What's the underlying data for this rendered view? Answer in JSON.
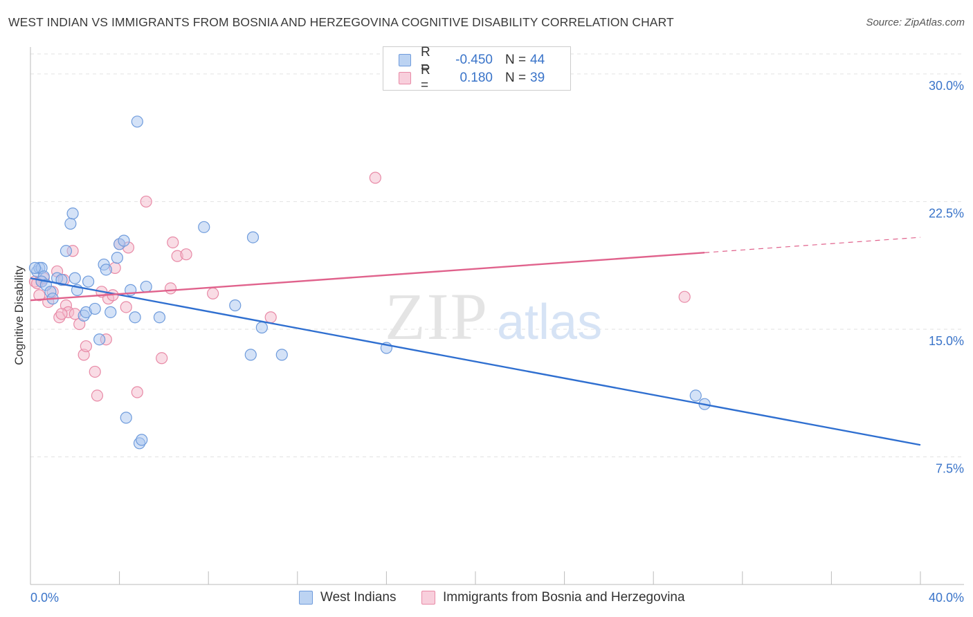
{
  "header": {
    "title": "WEST INDIAN VS IMMIGRANTS FROM BOSNIA AND HERZEGOVINA COGNITIVE DISABILITY CORRELATION CHART",
    "source": "Source: ZipAtlas.com"
  },
  "watermark": {
    "zip": "ZIP",
    "atlas": "atlas"
  },
  "legend": {
    "rows": [
      {
        "r_label": "R =",
        "r_value": "-0.450",
        "n_label": "N =",
        "n_value": "44"
      },
      {
        "r_label": "R =",
        "r_value": "0.180",
        "n_label": "N =",
        "n_value": "39"
      }
    ]
  },
  "colors": {
    "blue_fill": "#a9c6ef",
    "blue_stroke": "#6e9bdc",
    "blue_line": "#2f6fd0",
    "pink_fill": "#f4b9cb",
    "pink_stroke": "#e889a6",
    "pink_line": "#e0628c",
    "axis_label": "#3a74c9",
    "grid": "#e2e2e2"
  },
  "chart_data": {
    "type": "scatter",
    "title": "WEST INDIAN VS IMMIGRANTS FROM BOSNIA AND HERZEGOVINA COGNITIVE DISABILITY CORRELATION CHART",
    "xlabel": "",
    "ylabel": "Cognitive Disability",
    "xlim": [
      0,
      40
    ],
    "ylim": [
      0,
      31.5
    ],
    "x_tick_labels": [
      "0.0%",
      "40.0%"
    ],
    "y_ticks": [
      7.5,
      15.0,
      22.5,
      30.0
    ],
    "y_tick_labels": [
      "7.5%",
      "15.0%",
      "22.5%",
      "30.0%"
    ],
    "grid": "horizontal dashed",
    "series": [
      {
        "name": "West Indians",
        "color": "#6e9bdc",
        "points": [
          [
            0.3,
            18.4
          ],
          [
            0.4,
            18.6
          ],
          [
            0.5,
            18.6
          ],
          [
            0.6,
            18.1
          ],
          [
            0.5,
            17.8
          ],
          [
            0.7,
            17.6
          ],
          [
            0.9,
            17.2
          ],
          [
            1.0,
            16.8
          ],
          [
            1.2,
            18.0
          ],
          [
            1.4,
            17.9
          ],
          [
            1.6,
            19.6
          ],
          [
            1.8,
            21.2
          ],
          [
            1.9,
            21.8
          ],
          [
            2.0,
            18.0
          ],
          [
            2.1,
            17.3
          ],
          [
            2.4,
            15.8
          ],
          [
            2.5,
            16.0
          ],
          [
            2.6,
            17.8
          ],
          [
            2.9,
            16.2
          ],
          [
            3.1,
            14.4
          ],
          [
            3.3,
            18.8
          ],
          [
            3.4,
            18.5
          ],
          [
            3.6,
            16.0
          ],
          [
            3.9,
            19.2
          ],
          [
            4.0,
            20.0
          ],
          [
            4.2,
            20.2
          ],
          [
            4.3,
            9.8
          ],
          [
            4.5,
            17.3
          ],
          [
            4.7,
            15.7
          ],
          [
            4.8,
            27.2
          ],
          [
            4.9,
            8.3
          ],
          [
            5.0,
            8.5
          ],
          [
            5.2,
            17.5
          ],
          [
            5.8,
            15.7
          ],
          [
            7.8,
            21.0
          ],
          [
            9.2,
            16.4
          ],
          [
            10.0,
            20.4
          ],
          [
            9.9,
            13.5
          ],
          [
            10.4,
            15.1
          ],
          [
            11.3,
            13.5
          ],
          [
            16.0,
            13.9
          ],
          [
            29.9,
            11.1
          ],
          [
            30.3,
            10.6
          ],
          [
            0.2,
            18.6
          ]
        ]
      },
      {
        "name": "Immigrants from Bosnia and Herzegovina",
        "color": "#e889a6",
        "points": [
          [
            0.2,
            17.8
          ],
          [
            0.4,
            17.0
          ],
          [
            0.5,
            17.8
          ],
          [
            0.6,
            18.0
          ],
          [
            0.8,
            16.6
          ],
          [
            1.0,
            17.2
          ],
          [
            1.2,
            18.4
          ],
          [
            1.3,
            15.7
          ],
          [
            1.5,
            17.9
          ],
          [
            1.6,
            16.4
          ],
          [
            1.7,
            16.0
          ],
          [
            1.9,
            19.6
          ],
          [
            2.0,
            15.9
          ],
          [
            2.2,
            15.3
          ],
          [
            2.4,
            13.5
          ],
          [
            2.5,
            14.0
          ],
          [
            2.9,
            12.5
          ],
          [
            3.0,
            11.1
          ],
          [
            3.2,
            17.2
          ],
          [
            3.4,
            14.4
          ],
          [
            3.5,
            16.8
          ],
          [
            3.7,
            17.0
          ],
          [
            3.8,
            18.6
          ],
          [
            4.0,
            20.0
          ],
          [
            4.3,
            16.3
          ],
          [
            4.4,
            19.8
          ],
          [
            4.8,
            11.3
          ],
          [
            5.2,
            22.5
          ],
          [
            5.9,
            13.3
          ],
          [
            6.3,
            17.4
          ],
          [
            6.4,
            20.1
          ],
          [
            6.6,
            19.3
          ],
          [
            7.0,
            19.4
          ],
          [
            8.2,
            17.1
          ],
          [
            10.8,
            15.7
          ],
          [
            15.5,
            23.9
          ],
          [
            29.4,
            16.9
          ],
          [
            1.4,
            15.9
          ],
          [
            0.3,
            17.7
          ]
        ]
      }
    ],
    "trend_lines": [
      {
        "series": "West Indians",
        "x": [
          0,
          40
        ],
        "y": [
          18.0,
          8.2
        ],
        "style": "solid"
      },
      {
        "series": "Immigrants from Bosnia and Herzegovina",
        "x": [
          0,
          30.3
        ],
        "y": [
          16.7,
          19.5
        ],
        "style": "solid"
      },
      {
        "series": "Immigrants from Bosnia and Herzegovina",
        "x": [
          30.3,
          40
        ],
        "y": [
          19.5,
          20.4
        ],
        "style": "dashed"
      }
    ]
  },
  "bottom_legend": [
    {
      "label": "West Indians"
    },
    {
      "label": "Immigrants from Bosnia and Herzegovina"
    }
  ]
}
